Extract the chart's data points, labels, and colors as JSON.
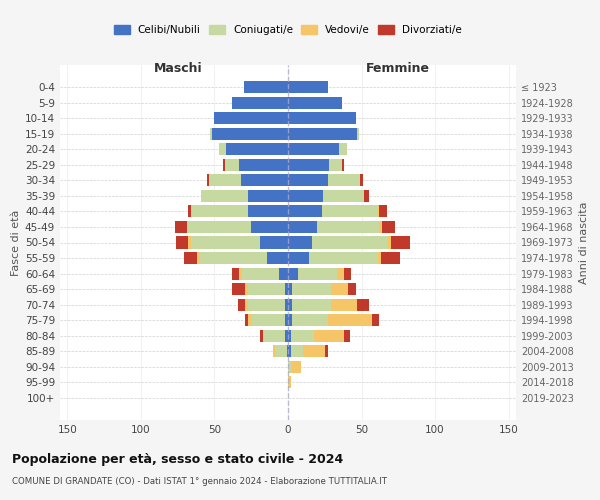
{
  "age_groups": [
    "0-4",
    "5-9",
    "10-14",
    "15-19",
    "20-24",
    "25-29",
    "30-34",
    "35-39",
    "40-44",
    "45-49",
    "50-54",
    "55-59",
    "60-64",
    "65-69",
    "70-74",
    "75-79",
    "80-84",
    "85-89",
    "90-94",
    "95-99",
    "100+"
  ],
  "birth_years": [
    "2019-2023",
    "2014-2018",
    "2009-2013",
    "2004-2008",
    "1999-2003",
    "1994-1998",
    "1989-1993",
    "1984-1988",
    "1979-1983",
    "1974-1978",
    "1969-1973",
    "1964-1968",
    "1959-1963",
    "1954-1958",
    "1949-1953",
    "1944-1948",
    "1939-1943",
    "1934-1938",
    "1929-1933",
    "1924-1928",
    "≤ 1923"
  ],
  "colors": {
    "celibi": "#4472c4",
    "coniugati": "#c5d9a0",
    "vedovi": "#f5c567",
    "divorziati": "#c0392b"
  },
  "males": {
    "celibi": [
      30,
      38,
      50,
      52,
      42,
      33,
      32,
      27,
      27,
      25,
      19,
      14,
      6,
      2,
      2,
      2,
      2,
      1,
      0,
      0,
      0
    ],
    "coniugati": [
      0,
      0,
      0,
      1,
      5,
      10,
      22,
      32,
      38,
      43,
      47,
      46,
      25,
      25,
      25,
      23,
      14,
      8,
      0,
      0,
      0
    ],
    "vedovi": [
      0,
      0,
      0,
      0,
      0,
      0,
      0,
      0,
      1,
      1,
      2,
      2,
      2,
      2,
      2,
      2,
      1,
      1,
      0,
      0,
      0
    ],
    "divorziati": [
      0,
      0,
      0,
      0,
      0,
      1,
      1,
      0,
      2,
      8,
      8,
      9,
      5,
      9,
      5,
      2,
      2,
      0,
      0,
      0,
      0
    ]
  },
  "females": {
    "nubili": [
      27,
      37,
      46,
      47,
      35,
      28,
      27,
      24,
      23,
      20,
      16,
      14,
      7,
      3,
      3,
      3,
      2,
      2,
      0,
      0,
      0
    ],
    "coniugate": [
      0,
      0,
      0,
      1,
      5,
      9,
      22,
      28,
      38,
      42,
      52,
      47,
      26,
      26,
      26,
      24,
      16,
      8,
      3,
      0,
      0
    ],
    "vedove": [
      0,
      0,
      0,
      0,
      0,
      0,
      0,
      0,
      1,
      2,
      2,
      2,
      5,
      12,
      18,
      30,
      20,
      15,
      6,
      2,
      0
    ],
    "divorziate": [
      0,
      0,
      0,
      0,
      0,
      1,
      2,
      3,
      5,
      9,
      13,
      13,
      5,
      5,
      8,
      5,
      4,
      2,
      0,
      0,
      0
    ]
  },
  "xlim": 155,
  "title": "Popolazione per età, sesso e stato civile - 2024",
  "subtitle": "COMUNE DI GRANDATE (CO) - Dati ISTAT 1° gennaio 2024 - Elaborazione TUTTITALIA.IT",
  "ylabel_left": "Fasce di età",
  "ylabel_right": "Anni di nascita",
  "xlabel_left": "Maschi",
  "xlabel_right": "Femmine",
  "bg_color": "#f5f5f5",
  "plot_bg": "#ffffff",
  "grid_color": "#cccccc"
}
